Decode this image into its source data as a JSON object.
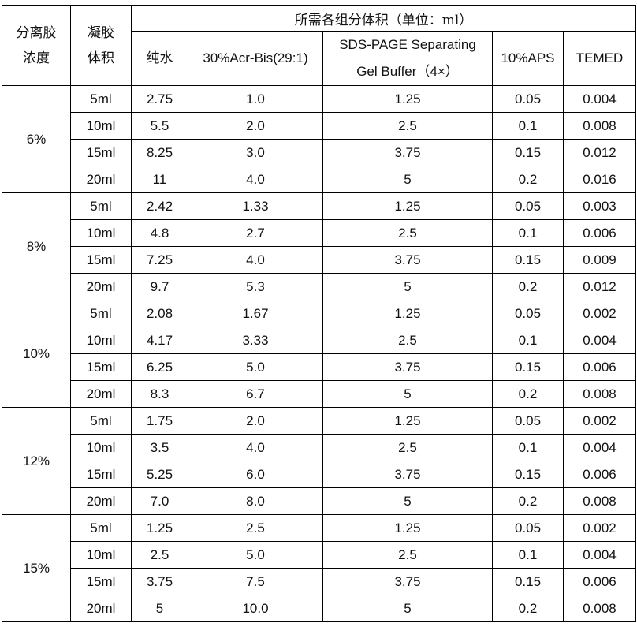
{
  "header": {
    "conc_label": "分离胶\n浓度",
    "vol_label": "凝胶\n体积",
    "group_title": "所需各组分体积（单位：ml）",
    "components": [
      "纯水",
      "30%Acr-Bis(29:1)",
      "SDS-PAGE Separating\nGel Buffer（4×）",
      "10%APS",
      "TEMED"
    ]
  },
  "groups": [
    {
      "conc": "6%",
      "rows": [
        [
          "5ml",
          "2.75",
          "1.0",
          "1.25",
          "0.05",
          "0.004"
        ],
        [
          "10ml",
          "5.5",
          "2.0",
          "2.5",
          "0.1",
          "0.008"
        ],
        [
          "15ml",
          "8.25",
          "3.0",
          "3.75",
          "0.15",
          "0.012"
        ],
        [
          "20ml",
          "11",
          "4.0",
          "5",
          "0.2",
          "0.016"
        ]
      ]
    },
    {
      "conc": "8%",
      "rows": [
        [
          "5ml",
          "2.42",
          "1.33",
          "1.25",
          "0.05",
          "0.003"
        ],
        [
          "10ml",
          "4.8",
          "2.7",
          "2.5",
          "0.1",
          "0.006"
        ],
        [
          "15ml",
          "7.25",
          "4.0",
          "3.75",
          "0.15",
          "0.009"
        ],
        [
          "20ml",
          "9.7",
          "5.3",
          "5",
          "0.2",
          "0.012"
        ]
      ]
    },
    {
      "conc": "10%",
      "rows": [
        [
          "5ml",
          "2.08",
          "1.67",
          "1.25",
          "0.05",
          "0.002"
        ],
        [
          "10ml",
          "4.17",
          "3.33",
          "2.5",
          "0.1",
          "0.004"
        ],
        [
          "15ml",
          "6.25",
          "5.0",
          "3.75",
          "0.15",
          "0.006"
        ],
        [
          "20ml",
          "8.3",
          "6.7",
          "5",
          "0.2",
          "0.008"
        ]
      ]
    },
    {
      "conc": "12%",
      "rows": [
        [
          "5ml",
          "1.75",
          "2.0",
          "1.25",
          "0.05",
          "0.002"
        ],
        [
          "10ml",
          "3.5",
          "4.0",
          "2.5",
          "0.1",
          "0.004"
        ],
        [
          "15ml",
          "5.25",
          "6.0",
          "3.75",
          "0.15",
          "0.006"
        ],
        [
          "20ml",
          "7.0",
          "8.0",
          "5",
          "0.2",
          "0.008"
        ]
      ]
    },
    {
      "conc": "15%",
      "rows": [
        [
          "5ml",
          "1.25",
          "2.5",
          "1.25",
          "0.05",
          "0.002"
        ],
        [
          "10ml",
          "2.5",
          "5.0",
          "2.5",
          "0.1",
          "0.004"
        ],
        [
          "15ml",
          "3.75",
          "7.5",
          "3.75",
          "0.15",
          "0.006"
        ],
        [
          "20ml",
          "5",
          "10.0",
          "5",
          "0.2",
          "0.008"
        ]
      ]
    }
  ]
}
